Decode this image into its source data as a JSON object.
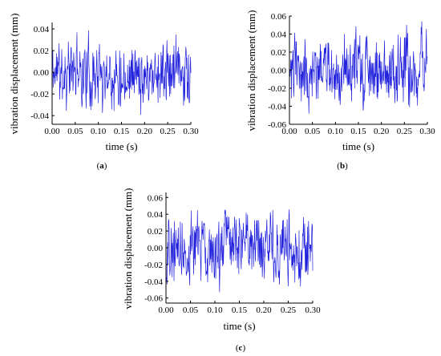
{
  "chart_data": [
    {
      "type": "line",
      "caption_open": "(",
      "caption_letter": "a",
      "caption_close": ")",
      "xlabel": "time (s)",
      "ylabel": "vibration displacement (mm)",
      "xlim": [
        0.0,
        0.3
      ],
      "ylim": [
        -0.048,
        0.046
      ],
      "xticks": [
        0.0,
        0.05,
        0.1,
        0.15,
        0.2,
        0.25,
        0.3
      ],
      "xtick_labels": [
        "0.00",
        "0.05",
        "0.10",
        "0.15",
        "0.20",
        "0.25",
        "0.30"
      ],
      "yticks": [
        0.04,
        0.02,
        0.0,
        -0.02,
        -0.04
      ],
      "ytick_labels": [
        "0.04",
        "0.02",
        "0.00",
        "-0.02",
        "-0.04"
      ],
      "line_color": "#2222dd",
      "amplitude": 0.045,
      "seed": 11,
      "n_points": 420,
      "series": [
        {
          "values_description_x_range": [
            0.0,
            0.3
          ]
        }
      ]
    },
    {
      "type": "line",
      "caption_open": "(",
      "caption_letter": "b",
      "caption_close": ")",
      "xlabel": "time (s)",
      "ylabel": "vibration displacement (mm)",
      "xlim": [
        0.0,
        0.3
      ],
      "ylim": [
        -0.06,
        0.06
      ],
      "xticks": [
        0.0,
        0.05,
        0.1,
        0.15,
        0.2,
        0.25,
        0.3
      ],
      "xtick_labels": [
        "0.00",
        "0.05",
        "0.10",
        "0.15",
        "0.20",
        "0.25",
        "0.30"
      ],
      "yticks": [
        0.06,
        0.04,
        0.02,
        0.0,
        -0.02,
        -0.04,
        -0.06
      ],
      "ytick_labels": [
        "0.06",
        "0.04",
        "0.02",
        "0.00",
        "-0.02",
        "-0.04",
        "-0.06"
      ],
      "line_color": "#2222dd",
      "amplitude": 0.054,
      "seed": 23,
      "n_points": 420,
      "series": [
        {
          "values_description_x_range": [
            0.0,
            0.3
          ]
        }
      ]
    },
    {
      "type": "line",
      "caption_open": "(",
      "caption_letter": "c",
      "caption_close": ")",
      "xlabel": "time (s)",
      "ylabel": "vibration displacement (mm)",
      "xlim": [
        0.0,
        0.3
      ],
      "ylim": [
        -0.066,
        0.066
      ],
      "xticks": [
        0.0,
        0.05,
        0.1,
        0.15,
        0.2,
        0.25,
        0.3
      ],
      "xtick_labels": [
        "0.00",
        "0.05",
        "0.10",
        "0.15",
        "0.20",
        "0.25",
        "0.30"
      ],
      "yticks": [
        0.06,
        0.04,
        0.02,
        0.0,
        -0.02,
        -0.04,
        -0.06
      ],
      "ytick_labels": [
        "0.06",
        "0.04",
        "0.02",
        "0.00",
        "-0.02",
        "-0.04",
        "-0.06"
      ],
      "line_color": "#2222dd",
      "amplitude": 0.062,
      "seed": 37,
      "n_points": 420,
      "series": [
        {
          "values_description_x_range": [
            0.0,
            0.3
          ]
        }
      ]
    }
  ]
}
